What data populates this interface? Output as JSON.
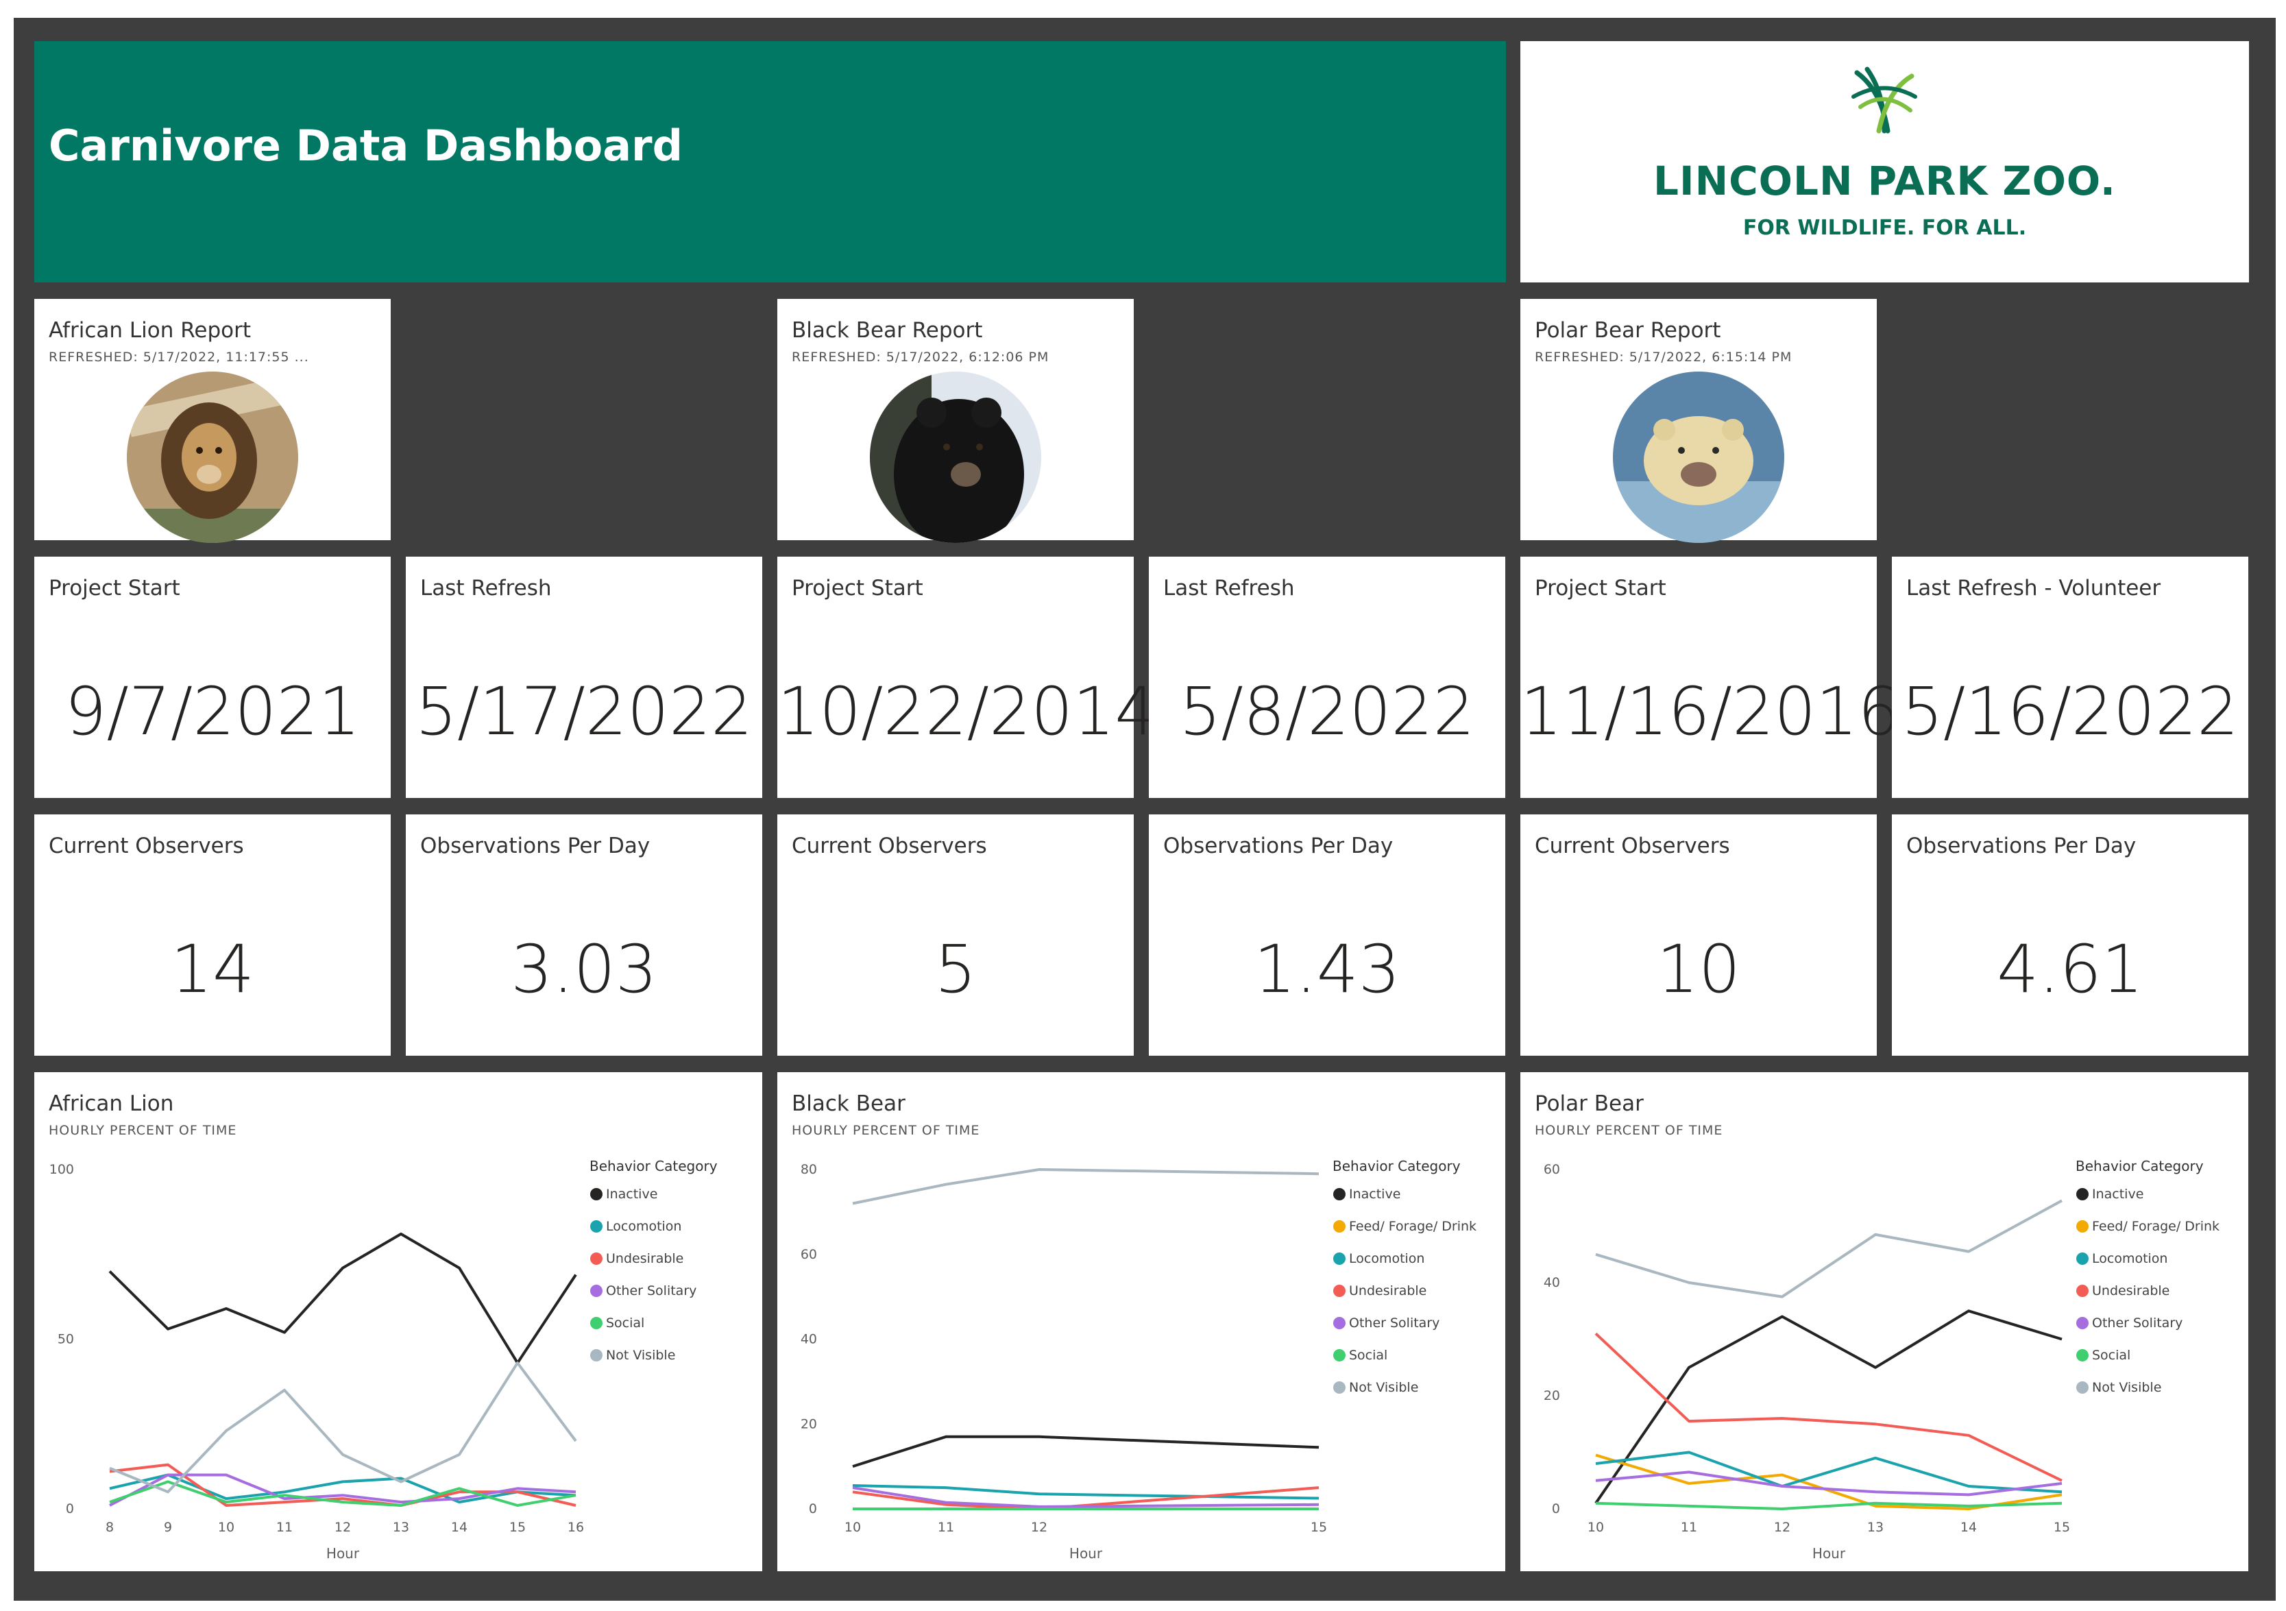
{
  "header": {
    "title": "Carnivore Data Dashboard",
    "logo_name": "LINCOLN PARK ZOO.",
    "logo_tagline": "FOR WILDLIFE. FOR ALL."
  },
  "reports": [
    {
      "title": "African Lion Report",
      "refreshed": "REFRESHED: 5/17/2022, 11:17:55 ..."
    },
    {
      "title": "Black Bear Report",
      "refreshed": "REFRESHED: 5/17/2022, 6:12:06 PM"
    },
    {
      "title": "Polar Bear Report",
      "refreshed": "REFRESHED: 5/17/2022, 6:15:14 PM"
    }
  ],
  "kpis": [
    {
      "label": "Project Start",
      "value": "9/7/2021"
    },
    {
      "label": "Last Refresh",
      "value": "5/17/2022"
    },
    {
      "label": "Project Start",
      "value": "10/22/2014"
    },
    {
      "label": "Last Refresh",
      "value": "5/8/2022"
    },
    {
      "label": "Project Start",
      "value": "11/16/2016"
    },
    {
      "label": "Last Refresh - Volunteer",
      "value": "5/16/2022"
    },
    {
      "label": "Current Observers",
      "value": "14"
    },
    {
      "label": "Observations Per Day",
      "value": "3.03"
    },
    {
      "label": "Current Observers",
      "value": "5"
    },
    {
      "label": "Observations Per Day",
      "value": "1.43"
    },
    {
      "label": "Current Observers",
      "value": "10"
    },
    {
      "label": "Observations Per Day",
      "value": "4.61"
    }
  ],
  "colors": {
    "Inactive": "#252423",
    "Feed/ Forage/ Drink": "#f2a900",
    "Locomotion": "#1aa3ad",
    "Undesirable": "#f25c54",
    "Other Solitary": "#a66de0",
    "Social": "#3fcf6e",
    "Not Visible": "#a9b7c0"
  },
  "chart_data": [
    {
      "type": "line",
      "title": "African Lion",
      "subtitle": "HOURLY PERCENT OF TIME",
      "xlabel": "Hour",
      "ylabel": "",
      "x": [
        8,
        9,
        10,
        11,
        12,
        13,
        14,
        15,
        16
      ],
      "xticks": [
        "8",
        "9",
        "10",
        "11",
        "12",
        "13",
        "14",
        "15",
        "16"
      ],
      "ylim": [
        0,
        100
      ],
      "yticks": [
        "0",
        "50",
        "100"
      ],
      "legend_title": "Behavior Category",
      "legend_position": "right",
      "series": [
        {
          "name": "Inactive",
          "values": [
            70,
            53,
            59,
            52,
            71,
            81,
            71,
            43,
            69
          ]
        },
        {
          "name": "Locomotion",
          "values": [
            6,
            10,
            3,
            5,
            8,
            9,
            2,
            5,
            4
          ]
        },
        {
          "name": "Undesirable",
          "values": [
            11,
            13,
            1,
            2,
            3,
            1,
            5,
            5,
            1
          ]
        },
        {
          "name": "Other Solitary",
          "values": [
            1,
            10,
            10,
            3,
            4,
            2,
            3,
            6,
            5
          ]
        },
        {
          "name": "Social",
          "values": [
            2,
            8,
            2,
            4,
            2,
            1,
            6,
            1,
            4
          ]
        },
        {
          "name": "Not Visible",
          "values": [
            12,
            5,
            23,
            35,
            16,
            8,
            16,
            43,
            20
          ]
        }
      ]
    },
    {
      "type": "line",
      "title": "Black Bear",
      "subtitle": "HOURLY PERCENT OF TIME",
      "xlabel": "Hour",
      "ylabel": "",
      "x": [
        10,
        11,
        12,
        15
      ],
      "xticks": [
        "10",
        "11",
        "12",
        "15"
      ],
      "ylim": [
        0,
        80
      ],
      "yticks": [
        "0",
        "20",
        "40",
        "60",
        "80"
      ],
      "legend_title": "Behavior Category",
      "legend_position": "right",
      "series": [
        {
          "name": "Inactive",
          "values": [
            10,
            17,
            17,
            14.5
          ]
        },
        {
          "name": "Feed/ Forage/ Drink",
          "values": [
            null,
            null,
            null,
            null
          ]
        },
        {
          "name": "Locomotion",
          "values": [
            5.5,
            5,
            3.5,
            2.5
          ]
        },
        {
          "name": "Undesirable",
          "values": [
            4,
            1,
            0,
            5
          ]
        },
        {
          "name": "Other Solitary",
          "values": [
            5,
            1.5,
            0.5,
            1
          ]
        },
        {
          "name": "Social",
          "values": [
            0,
            0,
            0,
            0
          ]
        },
        {
          "name": "Not Visible",
          "values": [
            72,
            76.5,
            80,
            79
          ]
        }
      ]
    },
    {
      "type": "line",
      "title": "Polar Bear",
      "subtitle": "HOURLY PERCENT OF TIME",
      "xlabel": "Hour",
      "ylabel": "",
      "x": [
        10,
        11,
        12,
        13,
        14,
        15
      ],
      "xticks": [
        "10",
        "11",
        "12",
        "13",
        "14",
        "15"
      ],
      "ylim": [
        0,
        60
      ],
      "yticks": [
        "0",
        "20",
        "40",
        "60"
      ],
      "legend_title": "Behavior Category",
      "legend_position": "right",
      "series": [
        {
          "name": "Inactive",
          "values": [
            1,
            25,
            34,
            25,
            35,
            30
          ]
        },
        {
          "name": "Feed/ Forage/ Drink",
          "values": [
            9.5,
            4.5,
            6,
            0.5,
            0,
            2.5
          ]
        },
        {
          "name": "Locomotion",
          "values": [
            8,
            10,
            4,
            9,
            4,
            3
          ]
        },
        {
          "name": "Undesirable",
          "values": [
            31,
            15.5,
            16,
            15,
            13,
            5
          ]
        },
        {
          "name": "Other Solitary",
          "values": [
            5,
            6.5,
            4,
            3,
            2.5,
            4.5
          ]
        },
        {
          "name": "Social",
          "values": [
            1,
            0.5,
            0,
            1,
            0.5,
            1
          ]
        },
        {
          "name": "Not Visible",
          "values": [
            45,
            40,
            37.5,
            48.5,
            45.5,
            54.5
          ]
        }
      ]
    }
  ]
}
